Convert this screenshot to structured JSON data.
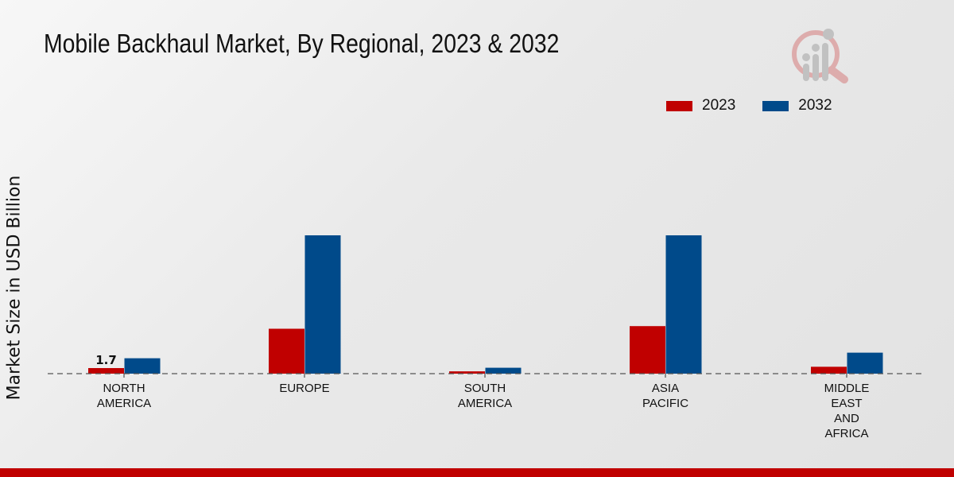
{
  "title": "Mobile Backhaul Market, By Regional, 2023 & 2032",
  "colors": {
    "2023": "#c00000",
    "2032": "#004a8a",
    "accent_bar": "#c00000"
  },
  "logo_icon": "magnifier-bar-chart-logo",
  "chart_data": {
    "type": "bar",
    "title": "Mobile Backhaul Market, By Regional, 2023 & 2032",
    "xlabel": "",
    "ylabel": "Market Size in USD Billion",
    "categories": [
      [
        "NORTH",
        "AMERICA"
      ],
      [
        "EUROPE"
      ],
      [
        "SOUTH",
        "AMERICA"
      ],
      [
        "ASIA",
        "PACIFIC"
      ],
      [
        "MIDDLE",
        "EAST",
        "AND",
        "AFRICA"
      ]
    ],
    "series": [
      {
        "name": "2023",
        "values": [
          1.7,
          13.7,
          0.7,
          14.5,
          2.1
        ]
      },
      {
        "name": "2032",
        "values": [
          4.7,
          42.2,
          1.8,
          42.2,
          6.4
        ]
      }
    ],
    "data_labels": [
      {
        "series": "2023",
        "category_index": 0,
        "text": "1.7"
      }
    ],
    "ylim": [
      0,
      60
    ],
    "grid": false,
    "legend_position": "top-right"
  }
}
